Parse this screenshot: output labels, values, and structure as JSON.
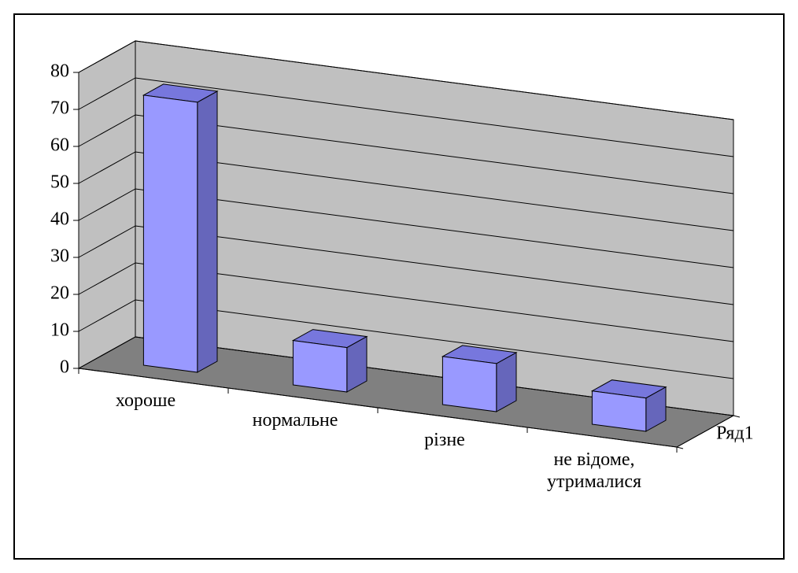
{
  "chart_data": {
    "type": "bar3d",
    "categories": [
      "хороше",
      "нормальне",
      "різне",
      "не відоме, утрималися"
    ],
    "series": [
      {
        "name": "Ряд1",
        "color": "#9999ff",
        "values": [
          73,
          12,
          13,
          9
        ]
      }
    ],
    "ylim": [
      0,
      80
    ],
    "yticks": [
      0,
      10,
      20,
      30,
      40,
      50,
      60,
      70,
      80
    ],
    "grid": true
  }
}
